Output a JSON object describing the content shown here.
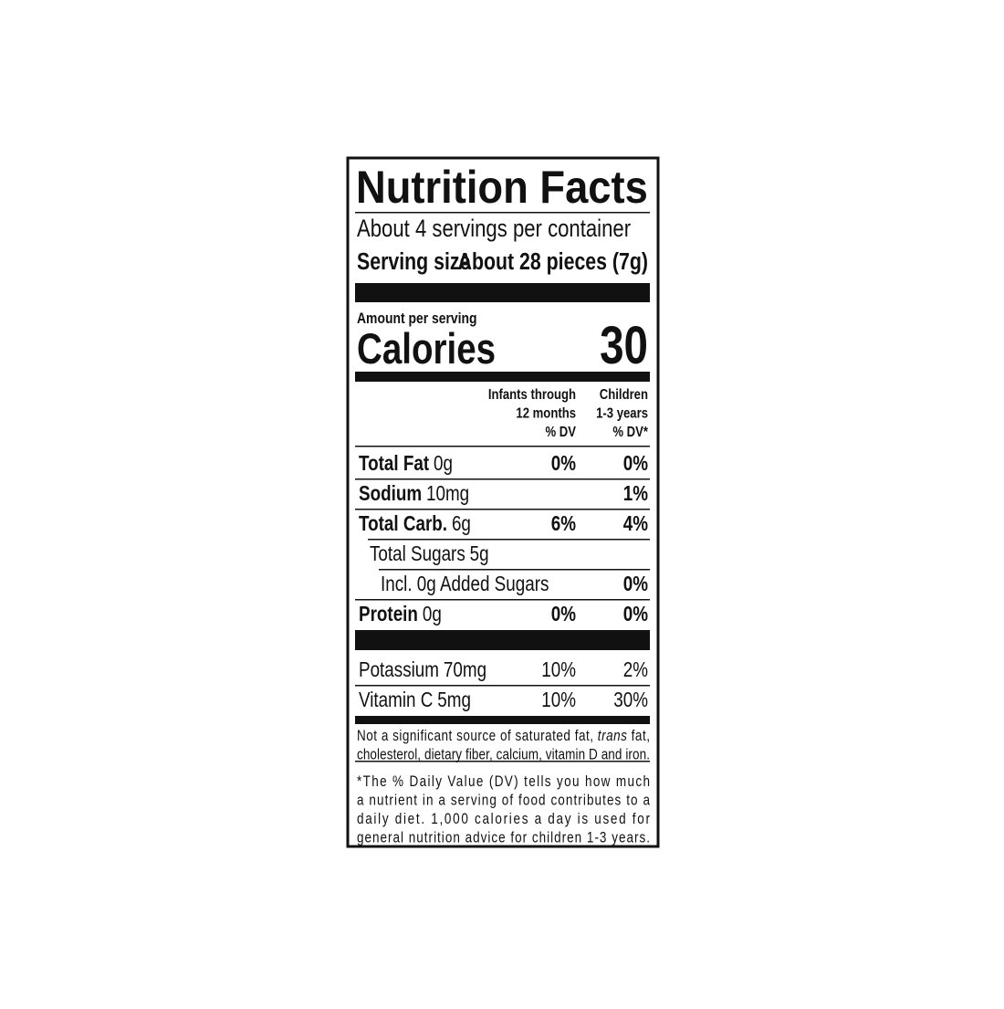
{
  "label": {
    "title": "Nutrition Facts",
    "servings": "About 4 servings per container",
    "serving_size": {
      "label": "Serving size",
      "value": "About 28 pieces (7g)"
    },
    "amount_per_serving": "Amount per serving",
    "calories": {
      "label": "Calories",
      "value": "30"
    },
    "columns": [
      [
        "Infants through",
        "12 months",
        "% DV"
      ],
      [
        "Children",
        "1-3 years",
        "% DV*"
      ]
    ],
    "nutrients": [
      {
        "name": "Total Fat",
        "amount": "0g",
        "dv": [
          "0%",
          "0%"
        ]
      },
      {
        "name": "Sodium",
        "amount": "10mg",
        "dv": [
          null,
          "1%"
        ]
      },
      {
        "name": "Total Carb.",
        "amount": "6g",
        "dv": [
          "6%",
          "4%"
        ],
        "sub": [
          {
            "name": "Total Sugars",
            "amount": "5g",
            "dv": [
              null,
              null
            ],
            "sub": [
              {
                "name": "Incl. 0g Added Sugars",
                "dv": [
                  null,
                  "0%"
                ]
              }
            ]
          }
        ]
      },
      {
        "name": "Protein",
        "amount": "0g",
        "dv": [
          "0%",
          "0%"
        ]
      }
    ],
    "vitamins": [
      {
        "name": "Potassium",
        "amount": "70mg",
        "dv": [
          "10%",
          "2%"
        ]
      },
      {
        "name": "Vitamin C",
        "amount": "5mg",
        "dv": [
          "10%",
          "30%"
        ]
      }
    ],
    "footnotes": [
      [
        [
          "Not a significant source of saturated fat, ",
          "trans",
          " fat,"
        ],
        [
          "cholesterol, dietary fiber, calcium, vitamin D and iron."
        ]
      ],
      [
        [
          "*The % Daily Value (DV) tells you how much"
        ],
        [
          "a nutrient in a serving of food contributes to a"
        ],
        [
          "daily diet. 1,000 calories a day is used for"
        ],
        [
          "general nutrition advice for children 1-3 years."
        ]
      ]
    ]
  }
}
